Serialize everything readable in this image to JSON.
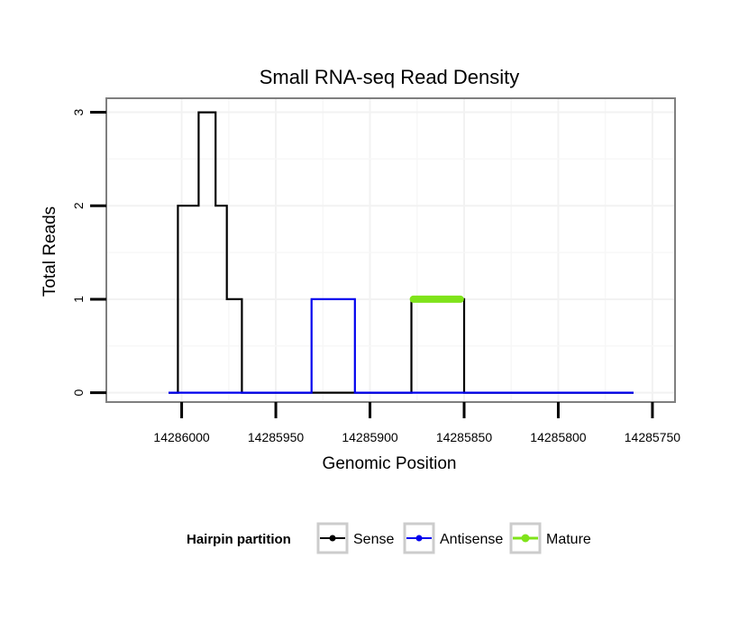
{
  "chart_data": {
    "type": "line",
    "title": "Small RNA-seq Read Density",
    "xlabel": "Genomic Position",
    "ylabel": "Total Reads",
    "xlim": [
      14286040,
      14285738
    ],
    "ylim": [
      -0.1,
      3.15
    ],
    "x_reversed": true,
    "x_ticks": [
      14286000,
      14285950,
      14285900,
      14285850,
      14285800,
      14285750
    ],
    "x_tick_labels": [
      "14286000",
      "14285950",
      "14285900",
      "14285850",
      "14285800",
      "14285750"
    ],
    "y_ticks": [
      0,
      1,
      2,
      3
    ],
    "y_tick_labels": [
      "0",
      "1",
      "2",
      "3"
    ],
    "grid": true,
    "legend": {
      "title": "Hairpin partition",
      "position": "bottom"
    },
    "series": [
      {
        "name": "Sense",
        "color": "#000000",
        "x": [
          14286007,
          14286002,
          14286002,
          14285991,
          14285991,
          14285982,
          14285982,
          14285976,
          14285976,
          14285968,
          14285968,
          14285931,
          14285931,
          14285878,
          14285878,
          14285850,
          14285850,
          14285760
        ],
        "y": [
          0,
          0,
          2,
          2,
          3,
          3,
          2,
          2,
          1,
          1,
          0,
          0,
          0,
          0,
          1,
          1,
          0,
          0
        ]
      },
      {
        "name": "Antisense",
        "color": "#0000ee",
        "x": [
          14286007,
          14285931,
          14285931,
          14285908,
          14285908,
          14285850,
          14285760
        ],
        "y": [
          0,
          0,
          1,
          1,
          0,
          0,
          0
        ]
      },
      {
        "name": "Mature",
        "color": "#7fe31a",
        "x": [
          14285877,
          14285852
        ],
        "y": [
          1,
          1
        ]
      }
    ]
  }
}
